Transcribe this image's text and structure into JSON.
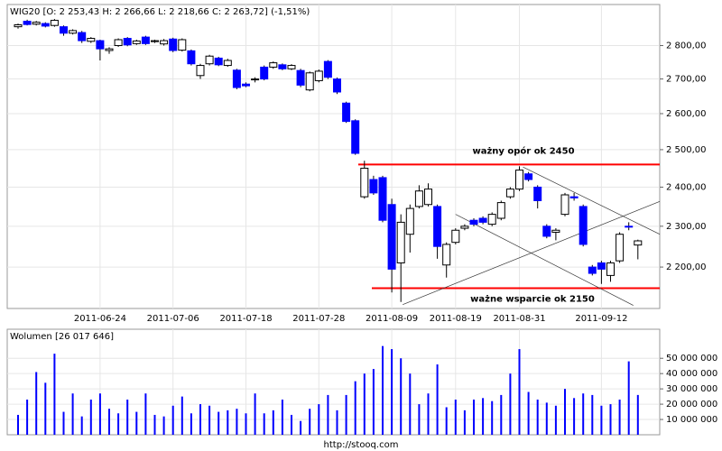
{
  "chart_data": [
    {
      "type": "candlestick",
      "title": "WIG20 [O: 2 253,43  H: 2 266,66  L: 2 218,66  C: 2 263,72] (-1,51%)",
      "categories": [
        null,
        null,
        null,
        null,
        null,
        null,
        null,
        null,
        null,
        "2011-06-24",
        null,
        null,
        null,
        null,
        null,
        null,
        null,
        "2011-07-06",
        null,
        null,
        null,
        null,
        null,
        null,
        null,
        "2011-07-18",
        null,
        null,
        null,
        null,
        null,
        null,
        null,
        "2011-07-28",
        null,
        null,
        null,
        null,
        null,
        null,
        null,
        "2011-08-09",
        null,
        null,
        null,
        null,
        null,
        null,
        "2011-08-19",
        null,
        null,
        null,
        null,
        null,
        null,
        "2011-08-31",
        null,
        null,
        null,
        null,
        null,
        null,
        null,
        null,
        "2011-09-12",
        null,
        null,
        null,
        null
      ],
      "open": [
        2858,
        2875,
        2866,
        2868,
        2862,
        2858,
        2838,
        2840,
        2813,
        2815,
        2785,
        2800,
        2822,
        2806,
        2826,
        2812,
        2805,
        2820,
        2786,
        2784,
        2710,
        2745,
        2762,
        2740,
        2726,
        2685,
        2698,
        2735,
        2735,
        2742,
        2730,
        2725,
        2668,
        2695,
        2752,
        2700,
        2630,
        2580,
        2375,
        2420,
        2425,
        2355,
        2210,
        2280,
        2350,
        2355,
        2350,
        2205,
        2260,
        2295,
        2315,
        2320,
        2305,
        2320,
        2375,
        2395,
        2435,
        2400,
        2300,
        2285,
        2330,
        2375,
        2350,
        2200,
        2210,
        2180,
        2215,
        2300,
        2253.43
      ],
      "high": [
        2868,
        2880,
        2876,
        2872,
        2882,
        2862,
        2850,
        2845,
        2826,
        2818,
        2795,
        2822,
        2826,
        2818,
        2830,
        2818,
        2820,
        2824,
        2822,
        2788,
        2745,
        2772,
        2766,
        2760,
        2730,
        2690,
        2705,
        2740,
        2752,
        2746,
        2744,
        2730,
        2722,
        2728,
        2756,
        2704,
        2634,
        2584,
        2470,
        2430,
        2430,
        2370,
        2330,
        2355,
        2405,
        2410,
        2355,
        2260,
        2295,
        2305,
        2320,
        2325,
        2335,
        2365,
        2400,
        2455,
        2440,
        2405,
        2305,
        2295,
        2385,
        2385,
        2355,
        2205,
        2215,
        2215,
        2285,
        2310,
        2266.66
      ],
      "low": [
        2852,
        2862,
        2862,
        2856,
        2858,
        2830,
        2834,
        2808,
        2808,
        2755,
        2775,
        2796,
        2798,
        2802,
        2802,
        2808,
        2800,
        2780,
        2782,
        2740,
        2700,
        2740,
        2738,
        2736,
        2670,
        2676,
        2690,
        2696,
        2730,
        2726,
        2726,
        2676,
        2664,
        2690,
        2700,
        2656,
        2574,
        2486,
        2370,
        2380,
        2310,
        2140,
        2118,
        2235,
        2345,
        2350,
        2220,
        2175,
        2255,
        2290,
        2300,
        2305,
        2300,
        2315,
        2370,
        2390,
        2415,
        2345,
        2270,
        2265,
        2325,
        2365,
        2250,
        2180,
        2160,
        2165,
        2210,
        2290,
        2218.66
      ],
      "close": [
        2864,
        2865,
        2872,
        2860,
        2878,
        2838,
        2846,
        2815,
        2822,
        2790,
        2790,
        2818,
        2802,
        2814,
        2806,
        2815,
        2815,
        2785,
        2818,
        2745,
        2740,
        2768,
        2742,
        2755,
        2675,
        2680,
        2700,
        2700,
        2748,
        2730,
        2740,
        2682,
        2718,
        2723,
        2705,
        2662,
        2578,
        2490,
        2450,
        2385,
        2315,
        2195,
        2310,
        2345,
        2390,
        2395,
        2250,
        2255,
        2290,
        2300,
        2305,
        2310,
        2330,
        2360,
        2395,
        2445,
        2420,
        2365,
        2275,
        2290,
        2380,
        2372,
        2255,
        2185,
        2195,
        2210,
        2280,
        2298,
        2263.72
      ],
      "up_color": "#ffffff",
      "down_color": "#0000ff",
      "ylim": [
        2103,
        2928
      ],
      "log_scale": true,
      "grid": true,
      "yticks": [
        {
          "value": 2200,
          "label": "2 200,00"
        },
        {
          "value": 2300,
          "label": "2 300,00"
        },
        {
          "value": 2400,
          "label": "2 400,00"
        },
        {
          "value": 2500,
          "label": "2 500,00"
        },
        {
          "value": 2600,
          "label": "2 600,00"
        },
        {
          "value": 2700,
          "label": "2 700,00"
        },
        {
          "value": 2800,
          "label": "2 800,00"
        }
      ],
      "levels": [
        {
          "text": "ważny opór ok 2450",
          "value": 2460,
          "color": "#ff0000"
        },
        {
          "text": "ważne wsparcie ok 2150",
          "value": 2150,
          "color": "#ff0000"
        }
      ],
      "trendlines": [
        {
          "x": [
            42.2,
            70.4
          ],
          "y": [
            2112,
            2363
          ]
        },
        {
          "x": [
            55.4,
            70.4
          ],
          "y": [
            2453,
            2280
          ]
        },
        {
          "x": [
            48,
            67.5
          ],
          "y": [
            2330,
            2110
          ]
        }
      ]
    },
    {
      "type": "bar",
      "title": "Wolumen [26 017 646]",
      "color": "#0000ff",
      "values": [
        13000000,
        23000000,
        41000000,
        34000000,
        53000000,
        15000000,
        27000000,
        12000000,
        23000000,
        27000000,
        17000000,
        14000000,
        23000000,
        15000000,
        27000000,
        13000000,
        12000000,
        19000000,
        25000000,
        14000000,
        20000000,
        19000000,
        15000000,
        16000000,
        17000000,
        14000000,
        27000000,
        14000000,
        16000000,
        23000000,
        13000000,
        9000000,
        17000000,
        20000000,
        26000000,
        16000000,
        26000000,
        35000000,
        40000000,
        43000000,
        58000000,
        56000000,
        50000000,
        40000000,
        20000000,
        27000000,
        46000000,
        18000000,
        23000000,
        16000000,
        23000000,
        24000000,
        22000000,
        26000000,
        40000000,
        56000000,
        28000000,
        23000000,
        21000000,
        19000000,
        30000000,
        24000000,
        27000000,
        26000000,
        19000000,
        20000000,
        23000000,
        48000000,
        26017646
      ],
      "ylim": [
        0,
        69000000
      ],
      "grid": true,
      "yticks": [
        {
          "value": 10000000,
          "label": "10 000 000"
        },
        {
          "value": 20000000,
          "label": "20 000 000"
        },
        {
          "value": 30000000,
          "label": "30 000 000"
        },
        {
          "value": 40000000,
          "label": "40 000 000"
        },
        {
          "value": 50000000,
          "label": "50 000 000"
        }
      ]
    }
  ],
  "footer": "http://stooq.com"
}
